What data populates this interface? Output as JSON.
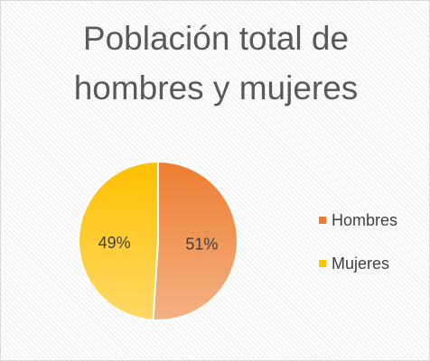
{
  "chart_data": {
    "type": "pie",
    "title": "Población total de hombres y mujeres",
    "categories": [
      "Hombres",
      "Mujeres"
    ],
    "values": [
      51,
      49
    ],
    "value_labels": [
      "51%",
      "49%"
    ],
    "colors": [
      "#ed7d31",
      "#ffc000"
    ],
    "legend": "right"
  }
}
